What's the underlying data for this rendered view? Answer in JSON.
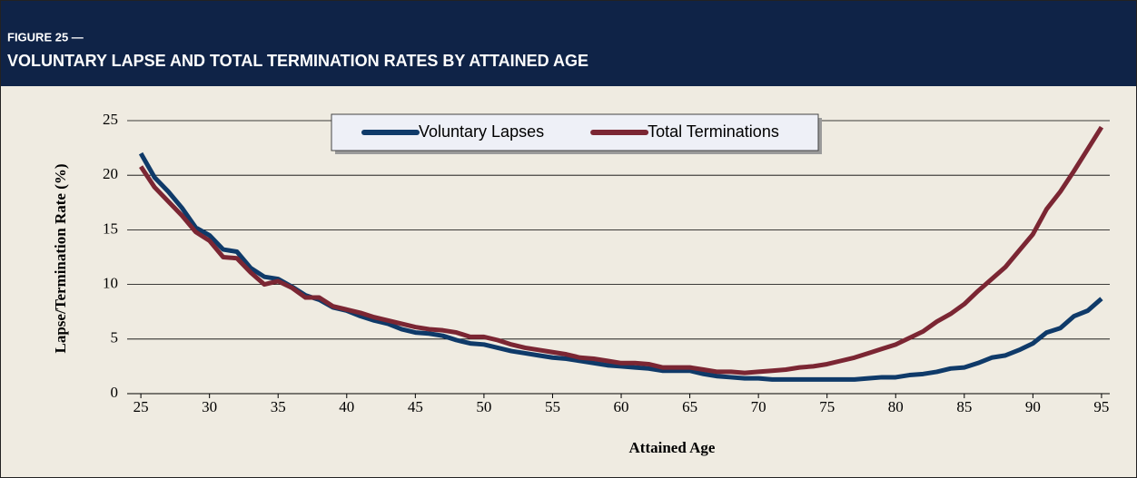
{
  "header": {
    "figure": "FIGURE 25 —",
    "title": "VOLUNTARY LAPSE AND TOTAL TERMINATION RATES BY ATTAINED AGE"
  },
  "chart_data": {
    "type": "line",
    "x_label": "Attained Age",
    "y_label": "Lapse/Termination Rate (%)",
    "x": [
      25,
      26,
      27,
      28,
      29,
      30,
      31,
      32,
      33,
      34,
      35,
      36,
      37,
      38,
      39,
      40,
      41,
      42,
      43,
      44,
      45,
      46,
      47,
      48,
      49,
      50,
      51,
      52,
      53,
      54,
      55,
      56,
      57,
      58,
      59,
      60,
      61,
      62,
      63,
      64,
      65,
      66,
      67,
      68,
      69,
      70,
      71,
      72,
      73,
      74,
      75,
      76,
      77,
      78,
      79,
      80,
      81,
      82,
      83,
      84,
      85,
      86,
      87,
      88,
      89,
      90,
      91,
      92,
      93,
      94,
      95
    ],
    "series": [
      {
        "name": "Voluntary Lapses",
        "color": "#0f3a69",
        "values": [
          22,
          19.8,
          18.5,
          17,
          15.2,
          14.5,
          13.2,
          13,
          11.5,
          10.7,
          10.5,
          9.8,
          9,
          8.6,
          7.9,
          7.6,
          7.1,
          6.7,
          6.4,
          5.9,
          5.6,
          5.5,
          5.3,
          4.9,
          4.6,
          4.5,
          4.2,
          3.9,
          3.7,
          3.5,
          3.3,
          3.2,
          3.0,
          2.8,
          2.6,
          2.5,
          2.4,
          2.3,
          2.1,
          2.1,
          2.1,
          1.8,
          1.6,
          1.5,
          1.4,
          1.4,
          1.3,
          1.3,
          1.3,
          1.3,
          1.3,
          1.3,
          1.3,
          1.4,
          1.5,
          1.5,
          1.7,
          1.8,
          2.0,
          2.3,
          2.4,
          2.8,
          3.3,
          3.5,
          4.0,
          4.6,
          5.6,
          6.0,
          7.1,
          7.6,
          8.7
        ]
      },
      {
        "name": "Total Terminations",
        "color": "#7b2633",
        "values": [
          20.8,
          18.9,
          17.6,
          16.3,
          14.8,
          14,
          12.5,
          12.4,
          11.1,
          10,
          10.3,
          9.7,
          8.8,
          8.8,
          8,
          7.7,
          7.4,
          7,
          6.7,
          6.4,
          6.1,
          5.9,
          5.8,
          5.6,
          5.2,
          5.2,
          4.9,
          4.5,
          4.2,
          4.0,
          3.8,
          3.6,
          3.3,
          3.2,
          3.0,
          2.8,
          2.8,
          2.7,
          2.4,
          2.4,
          2.4,
          2.2,
          2.0,
          2.0,
          1.9,
          2.0,
          2.1,
          2.2,
          2.4,
          2.5,
          2.7,
          3.0,
          3.3,
          3.7,
          4.1,
          4.5,
          5.1,
          5.7,
          6.6,
          7.3,
          8.2,
          9.4,
          10.5,
          11.6,
          13.1,
          14.6,
          16.9,
          18.5,
          20.4,
          22.4,
          24.4
        ]
      }
    ],
    "xlim": [
      24,
      95.6
    ],
    "xticks": [
      25,
      30,
      35,
      40,
      45,
      50,
      55,
      60,
      65,
      70,
      75,
      80,
      85,
      90,
      95
    ],
    "ylim": [
      0,
      25
    ],
    "yticks": [
      0,
      5,
      10,
      15,
      20,
      25
    ],
    "grid": true,
    "legend": "top"
  }
}
